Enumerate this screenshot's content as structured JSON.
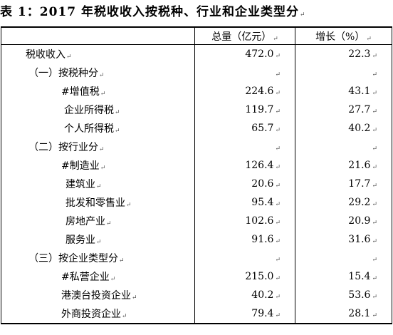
{
  "title": "表 1：2017 年税收收入按税种、行业和企业类型分",
  "mark": "↵",
  "header": {
    "col1": "",
    "col2": "总量（亿元）",
    "col3": "增长（%）"
  },
  "rows": [
    {
      "label": "税收收入",
      "total": "472.0",
      "growth": "22.3"
    },
    {
      "label": "（一）按税种分",
      "total": "",
      "growth": ""
    },
    {
      "label": "#增值税",
      "total": "224.6",
      "growth": "43.1"
    },
    {
      "label": "企业所得税",
      "total": "119.7",
      "growth": "27.7"
    },
    {
      "label": "个人所得税",
      "total": "65.7",
      "growth": "40.2"
    },
    {
      "label": "（二）按行业分",
      "total": "",
      "growth": ""
    },
    {
      "label": "#制造业",
      "total": "126.4",
      "growth": "21.6"
    },
    {
      "label": "建筑业",
      "total": "20.6",
      "growth": "17.7"
    },
    {
      "label": "批发和零售业",
      "total": "95.4",
      "growth": "29.2"
    },
    {
      "label": "房地产业",
      "total": "102.6",
      "growth": "20.9"
    },
    {
      "label": "服务业",
      "total": "91.6",
      "growth": "31.6"
    },
    {
      "label": "（三）按企业类型分",
      "total": "",
      "growth": ""
    },
    {
      "label": "#私营企业",
      "total": "215.0",
      "growth": "15.4"
    },
    {
      "label": "港澳台投资企业",
      "total": "40.2",
      "growth": "53.6"
    },
    {
      "label": "外商投资企业",
      "total": "79.4",
      "growth": "28.1"
    }
  ]
}
